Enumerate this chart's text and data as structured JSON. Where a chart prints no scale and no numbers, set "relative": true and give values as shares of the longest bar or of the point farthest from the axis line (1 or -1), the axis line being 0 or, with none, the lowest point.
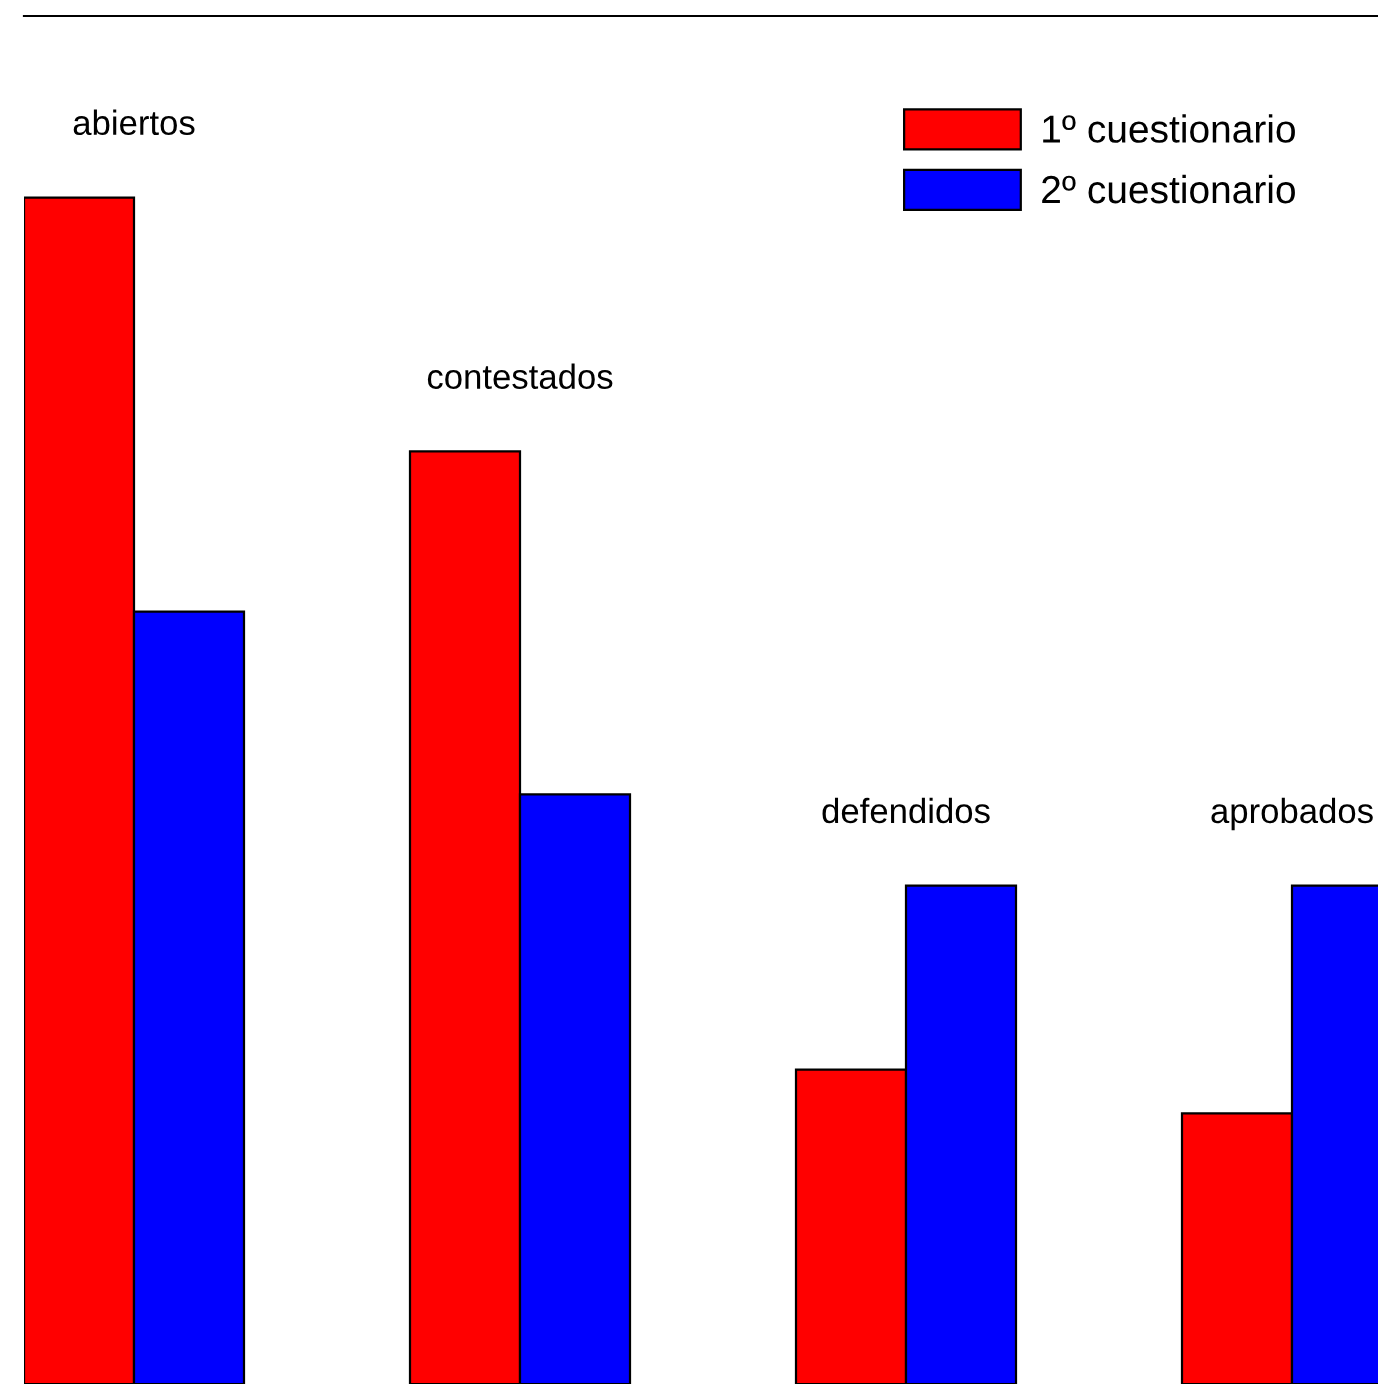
{
  "chart_data": {
    "type": "bar",
    "relative": true,
    "categories": [
      "abiertos",
      "contestados",
      "defendidos",
      "aprobados"
    ],
    "series": [
      {
        "name": "1º cuestionario",
        "color": "#ff0000",
        "values": [
          1,
          0.786,
          0.265,
          0.228
        ]
      },
      {
        "name": "2º cuestionario",
        "color": "#0000ff",
        "values": [
          0.651,
          0.497,
          0.42,
          0.42
        ]
      }
    ],
    "legend": "top right"
  }
}
